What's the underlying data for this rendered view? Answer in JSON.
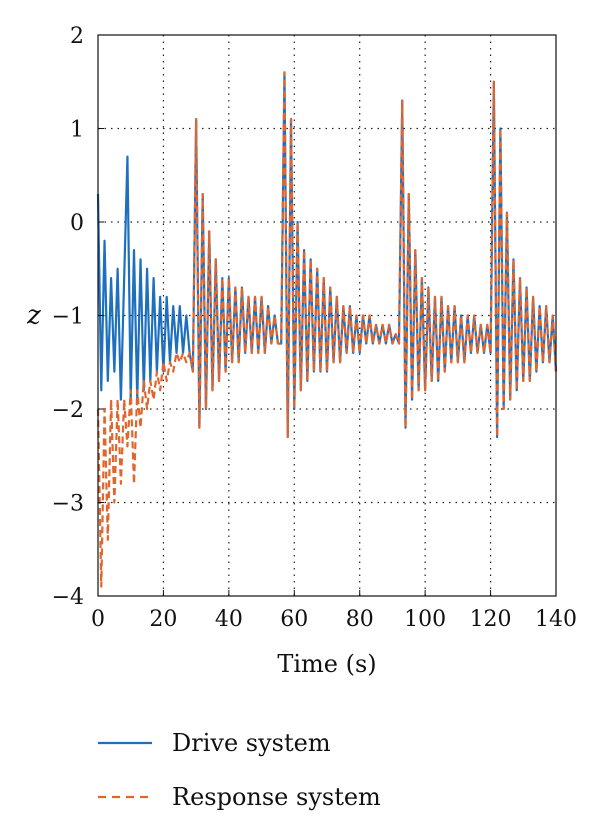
{
  "chart_data": {
    "type": "line",
    "xlabel": "Time (s)",
    "ylabel": "z",
    "xlim": [
      0,
      140
    ],
    "ylim": [
      -4,
      2
    ],
    "xticks": [
      0,
      20,
      40,
      60,
      80,
      100,
      120,
      140
    ],
    "yticks": [
      -4,
      -3,
      -2,
      -1,
      0,
      1,
      2
    ],
    "xtick_labels": [
      "0",
      "20",
      "40",
      "60",
      "80",
      "100",
      "120",
      "140"
    ],
    "ytick_labels": [
      "−4",
      "−3",
      "−2",
      "−1",
      "0",
      "1",
      "2"
    ],
    "grid": "dotted",
    "legend_position": "bottom",
    "series": [
      {
        "name": "Drive system",
        "color": "#1f6fbf",
        "style": "solid",
        "x": [
          0,
          1,
          2,
          3,
          4,
          5,
          6,
          7,
          8,
          9,
          10,
          11,
          12,
          13,
          14,
          15,
          16,
          17,
          18,
          19,
          20,
          21,
          22,
          23,
          24,
          25,
          26,
          27,
          28,
          29,
          30,
          31,
          32,
          33,
          34,
          35,
          36,
          37,
          38,
          39,
          40,
          41,
          42,
          43,
          44,
          45,
          46,
          47,
          48,
          49,
          50,
          51,
          52,
          53,
          54,
          55,
          56,
          57,
          58,
          59,
          60,
          61,
          62,
          63,
          64,
          65,
          66,
          67,
          68,
          69,
          70,
          71,
          72,
          73,
          74,
          75,
          76,
          77,
          78,
          79,
          80,
          81,
          82,
          83,
          84,
          85,
          86,
          87,
          88,
          89,
          90,
          91,
          92,
          93,
          94,
          95,
          96,
          97,
          98,
          99,
          100,
          101,
          102,
          103,
          104,
          105,
          106,
          107,
          108,
          109,
          110,
          111,
          112,
          113,
          114,
          115,
          116,
          117,
          118,
          119,
          120,
          121,
          122,
          123,
          124,
          125,
          126,
          127,
          128,
          129,
          130,
          131,
          132,
          133,
          134,
          135,
          136,
          137,
          138,
          139,
          140
        ],
        "y": [
          0.3,
          -1.8,
          -0.2,
          -1.7,
          -0.6,
          -1.6,
          -0.5,
          -1.9,
          -0.6,
          0.7,
          -1.9,
          -0.3,
          -1.9,
          -0.4,
          -1.8,
          -0.5,
          -1.7,
          -0.6,
          -1.6,
          -0.8,
          -1.6,
          -0.8,
          -1.5,
          -0.9,
          -1.4,
          -0.9,
          -1.4,
          -1.0,
          -1.4,
          -1.6,
          1.1,
          -2.2,
          0.3,
          -2.0,
          -0.1,
          -1.8,
          -0.4,
          -1.7,
          -0.6,
          -1.6,
          -0.6,
          -1.5,
          -0.7,
          -1.5,
          -0.7,
          -1.4,
          -0.8,
          -1.4,
          -0.8,
          -1.4,
          -0.8,
          -1.4,
          -0.9,
          -1.3,
          -1.0,
          -1.3,
          -1.3,
          1.6,
          -2.3,
          1.1,
          -2.0,
          0.0,
          -1.8,
          -0.3,
          -1.7,
          -0.4,
          -1.6,
          -0.5,
          -1.6,
          -0.6,
          -1.6,
          -0.7,
          -1.5,
          -0.8,
          -1.5,
          -0.9,
          -1.4,
          -0.9,
          -1.4,
          -1.0,
          -1.4,
          -1.0,
          -1.3,
          -1.0,
          -1.3,
          -1.1,
          -1.3,
          -1.1,
          -1.3,
          -1.1,
          -1.3,
          -1.2,
          -1.3,
          1.3,
          -2.2,
          0.3,
          -1.9,
          -0.3,
          -1.8,
          -0.6,
          -1.8,
          -0.7,
          -1.7,
          -0.8,
          -1.7,
          -0.8,
          -1.6,
          -0.9,
          -1.5,
          -0.9,
          -1.5,
          -1.0,
          -1.5,
          -1.0,
          -1.4,
          -1.0,
          -1.4,
          -1.1,
          -1.4,
          -1.1,
          -1.4,
          1.5,
          -2.3,
          1.0,
          -2.0,
          0.1,
          -1.9,
          -0.4,
          -1.8,
          -0.6,
          -1.7,
          -0.7,
          -1.7,
          -0.8,
          -1.6,
          -0.9,
          -1.5,
          -0.9,
          -1.5,
          -1.0,
          -1.6
        ]
      },
      {
        "name": "Response system",
        "color": "#e0662e",
        "style": "dashed",
        "x": [
          0,
          1,
          2,
          3,
          4,
          5,
          6,
          7,
          8,
          9,
          10,
          11,
          12,
          13,
          14,
          15,
          16,
          17,
          18,
          19,
          20,
          21,
          22,
          23,
          24,
          25,
          26,
          27,
          28,
          29,
          30,
          31,
          32,
          33,
          34,
          35,
          36,
          37,
          38,
          39,
          40,
          41,
          42,
          43,
          44,
          45,
          46,
          47,
          48,
          49,
          50,
          51,
          52,
          53,
          54,
          55,
          56,
          57,
          58,
          59,
          60,
          61,
          62,
          63,
          64,
          65,
          66,
          67,
          68,
          69,
          70,
          71,
          72,
          73,
          74,
          75,
          76,
          77,
          78,
          79,
          80,
          81,
          82,
          83,
          84,
          85,
          86,
          87,
          88,
          89,
          90,
          91,
          92,
          93,
          94,
          95,
          96,
          97,
          98,
          99,
          100,
          101,
          102,
          103,
          104,
          105,
          106,
          107,
          108,
          109,
          110,
          111,
          112,
          113,
          114,
          115,
          116,
          117,
          118,
          119,
          120,
          121,
          122,
          123,
          124,
          125,
          126,
          127,
          128,
          129,
          130,
          131,
          132,
          133,
          134,
          135,
          136,
          137,
          138,
          139,
          140
        ],
        "y": [
          -2.0,
          -3.9,
          -2.0,
          -3.4,
          -1.9,
          -3.0,
          -1.9,
          -2.8,
          -1.9,
          -2.4,
          -1.8,
          -2.8,
          -1.8,
          -2.2,
          -1.7,
          -2.0,
          -1.7,
          -1.9,
          -1.6,
          -1.8,
          -1.5,
          -1.7,
          -1.5,
          -1.6,
          -1.4,
          -1.5,
          -1.4,
          -1.5,
          -1.4,
          -1.6,
          1.1,
          -2.2,
          0.3,
          -2.0,
          -0.1,
          -1.8,
          -0.4,
          -1.7,
          -0.6,
          -1.6,
          -0.6,
          -1.5,
          -0.7,
          -1.5,
          -0.7,
          -1.4,
          -0.8,
          -1.4,
          -0.8,
          -1.4,
          -0.8,
          -1.4,
          -0.9,
          -1.3,
          -1.0,
          -1.3,
          -1.3,
          1.6,
          -2.3,
          1.1,
          -2.0,
          0.0,
          -1.8,
          -0.3,
          -1.7,
          -0.4,
          -1.6,
          -0.5,
          -1.6,
          -0.6,
          -1.6,
          -0.7,
          -1.5,
          -0.8,
          -1.5,
          -0.9,
          -1.4,
          -0.9,
          -1.4,
          -1.0,
          -1.4,
          -1.0,
          -1.3,
          -1.0,
          -1.3,
          -1.1,
          -1.3,
          -1.1,
          -1.3,
          -1.1,
          -1.3,
          -1.2,
          -1.3,
          1.3,
          -2.2,
          0.3,
          -1.9,
          -0.3,
          -1.8,
          -0.6,
          -1.8,
          -0.7,
          -1.7,
          -0.8,
          -1.7,
          -0.8,
          -1.6,
          -0.9,
          -1.5,
          -0.9,
          -1.5,
          -1.0,
          -1.5,
          -1.0,
          -1.4,
          -1.0,
          -1.4,
          -1.1,
          -1.4,
          -1.1,
          -1.4,
          1.5,
          -2.3,
          1.0,
          -2.0,
          0.1,
          -1.9,
          -0.4,
          -1.8,
          -0.6,
          -1.7,
          -0.7,
          -1.7,
          -0.8,
          -1.6,
          -0.9,
          -1.5,
          -0.9,
          -1.5,
          -1.0,
          -1.6
        ]
      }
    ]
  }
}
